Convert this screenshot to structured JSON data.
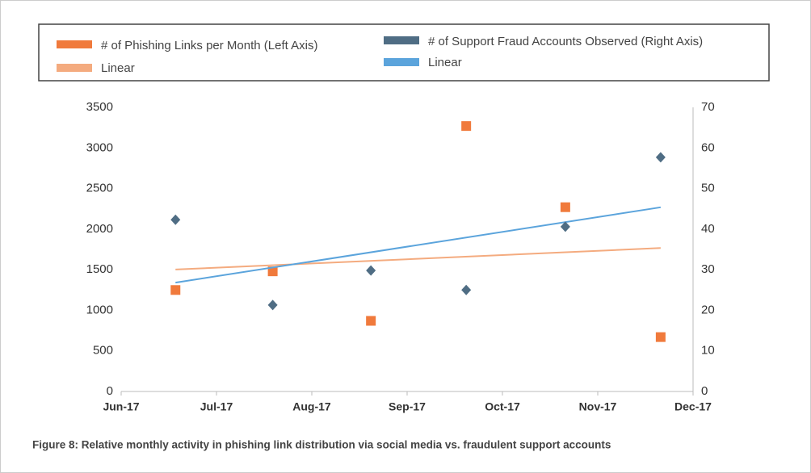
{
  "chart_data": {
    "type": "scatter",
    "caption": "Figure 8: Relative monthly activity in phishing link distribution via social media vs. fraudulent support accounts",
    "xlim": [
      0,
      6
    ],
    "xticks": [
      {
        "value": 0,
        "label": "Jun-17"
      },
      {
        "value": 1,
        "label": "Jul-17"
      },
      {
        "value": 2,
        "label": "Aug-17"
      },
      {
        "value": 3,
        "label": "Sep-17"
      },
      {
        "value": 4,
        "label": "Oct-17"
      },
      {
        "value": 5,
        "label": "Nov-17"
      },
      {
        "value": 6,
        "label": "Dec-17"
      }
    ],
    "ylim": [
      0,
      3500
    ],
    "yticks": [
      0,
      500,
      1000,
      1500,
      2000,
      2500,
      3000,
      3500
    ],
    "y2lim": [
      0,
      70
    ],
    "y2ticks": [
      0,
      10,
      20,
      30,
      40,
      50,
      60,
      70
    ],
    "series": [
      {
        "name": "# of Phishing Links per Month (Left Axis)",
        "color": "#f07a3c",
        "marker": "square",
        "x": [
          0.57,
          1.59,
          2.62,
          3.62,
          4.66,
          5.66
        ],
        "values": [
          1250,
          1480,
          870,
          3270,
          2270,
          670
        ],
        "trendline": {
          "name": "Linear",
          "color": "#f4ab7f"
        }
      },
      {
        "name": "# of Support Fraud Accounts Observed (Right Axis)",
        "color": "#4f6d84",
        "marker": "diamond",
        "axis": "y2",
        "x": [
          0.57,
          1.59,
          2.62,
          3.62,
          4.66,
          5.66
        ],
        "values": [
          42.3,
          21.3,
          29.8,
          25,
          40.6,
          57.7
        ],
        "trendline": {
          "name": "Linear",
          "color": "#5ba4dc"
        }
      }
    ]
  }
}
